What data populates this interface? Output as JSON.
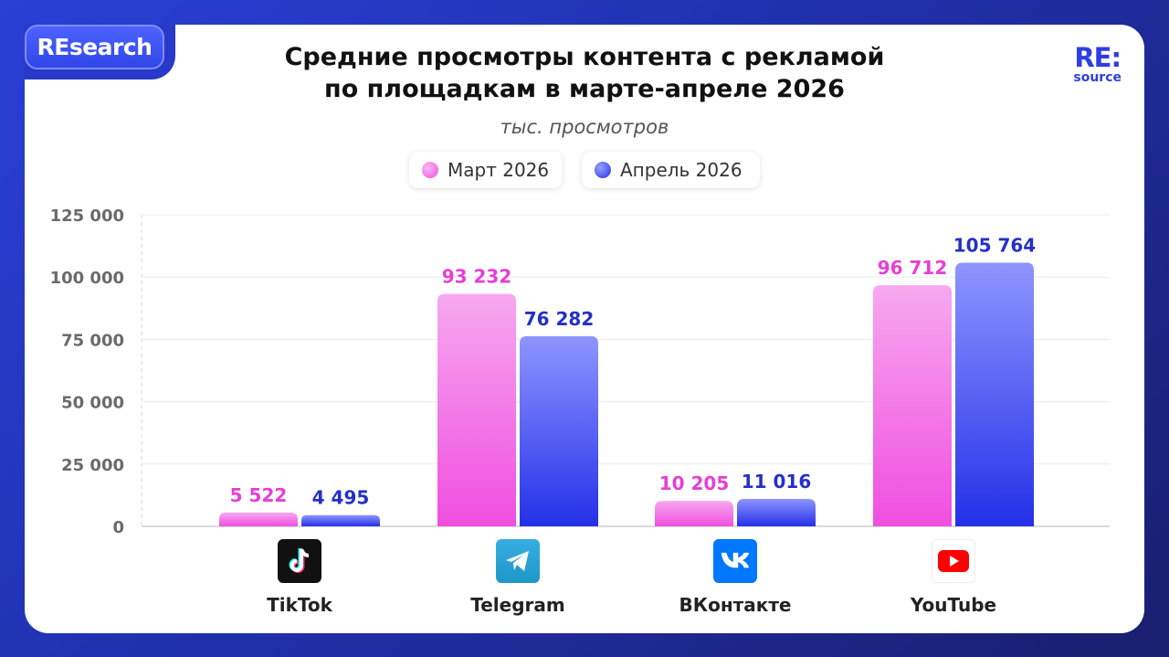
{
  "badge": {
    "label": "REsearch"
  },
  "logo": {
    "line1": "RE:",
    "line2": "source"
  },
  "header": {
    "title_line1": "Средние просмотры контента с рекламой",
    "title_line2": "по площадкам в марте-апреле 2026",
    "subtitle": "тыс. просмотров"
  },
  "colors": {
    "march_top": "#f7a8f0",
    "march_bottom": "#f04ee0",
    "april_top": "#8e95ff",
    "april_bottom": "#2430e8",
    "march_label": "#e83ed6",
    "april_label": "#2430c8"
  },
  "chart_data": {
    "type": "bar",
    "categories": [
      "TikTok",
      "Telegram",
      "ВКонтакте",
      "YouTube"
    ],
    "category_icons": [
      "tiktok-icon",
      "telegram-icon",
      "vk-icon",
      "youtube-icon"
    ],
    "series": [
      {
        "name": "Март 2026",
        "values": [
          5522,
          93232,
          10205,
          96712
        ],
        "labels": [
          "5 522",
          "93 232",
          "10 205",
          "96 712"
        ]
      },
      {
        "name": "Апрель 2026",
        "values": [
          4495,
          76282,
          11016,
          105764
        ],
        "labels": [
          "4 495",
          "76 282",
          "11 016",
          "105 764"
        ]
      }
    ],
    "yticks": [
      0,
      25000,
      50000,
      75000,
      100000,
      125000
    ],
    "ytick_labels": [
      "0",
      "25 000",
      "50 000",
      "75 000",
      "100 000",
      "125 000"
    ],
    "ylim": [
      0,
      125000
    ],
    "legend_position": "top-center",
    "grid": true
  }
}
